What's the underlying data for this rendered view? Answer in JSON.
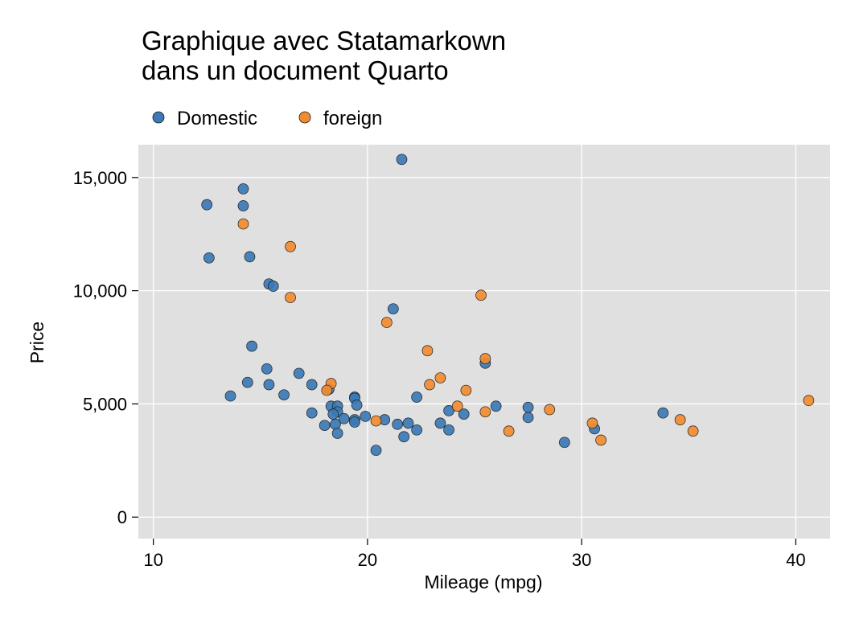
{
  "chart_data": {
    "type": "scatter",
    "title_lines": [
      "Graphique avec Statamarkown",
      "dans un document Quarto"
    ],
    "xlabel": "Mileage (mpg)",
    "ylabel": "Price",
    "xlim": [
      9.3,
      41.6
    ],
    "ylim": [
      -950,
      16450
    ],
    "x_ticks": [
      10,
      20,
      30,
      40
    ],
    "x_tick_labels": [
      "10",
      "20",
      "30",
      "40"
    ],
    "y_ticks": [
      0,
      5000,
      10000,
      15000
    ],
    "y_tick_labels": [
      "0",
      "5,000",
      "10,000",
      "15,000"
    ],
    "grid": true,
    "legend_position": "top-left",
    "plot_background": "#e0e0e0",
    "series": [
      {
        "name": "Domestic",
        "color": "#3b7ab5",
        "points": [
          [
            21.6,
            15800
          ],
          [
            14.2,
            14500
          ],
          [
            12.5,
            13800
          ],
          [
            14.2,
            13750
          ],
          [
            12.6,
            11450
          ],
          [
            14.5,
            11500
          ],
          [
            15.4,
            10300
          ],
          [
            15.6,
            10200
          ],
          [
            21.2,
            9200
          ],
          [
            14.6,
            7550
          ],
          [
            25.5,
            6800
          ],
          [
            15.3,
            6550
          ],
          [
            16.8,
            6350
          ],
          [
            14.4,
            5950
          ],
          [
            15.4,
            5850
          ],
          [
            17.4,
            5850
          ],
          [
            22.3,
            5300
          ],
          [
            13.6,
            5350
          ],
          [
            16.1,
            5400
          ],
          [
            18.2,
            5650
          ],
          [
            19.4,
            5300
          ],
          [
            19.4,
            5250
          ],
          [
            19.5,
            4950
          ],
          [
            18.3,
            4900
          ],
          [
            18.6,
            4900
          ],
          [
            26.0,
            4900
          ],
          [
            27.5,
            4850
          ],
          [
            23.8,
            4700
          ],
          [
            18.6,
            4650
          ],
          [
            17.4,
            4600
          ],
          [
            33.8,
            4600
          ],
          [
            24.5,
            4550
          ],
          [
            18.4,
            4550
          ],
          [
            19.9,
            4450
          ],
          [
            27.5,
            4400
          ],
          [
            18.9,
            4350
          ],
          [
            19.4,
            4300
          ],
          [
            20.8,
            4300
          ],
          [
            21.4,
            4100
          ],
          [
            21.9,
            4150
          ],
          [
            19.4,
            4200
          ],
          [
            23.4,
            4150
          ],
          [
            18.5,
            4100
          ],
          [
            18.0,
            4050
          ],
          [
            22.3,
            3850
          ],
          [
            23.8,
            3850
          ],
          [
            30.6,
            3900
          ],
          [
            18.6,
            3700
          ],
          [
            21.7,
            3550
          ],
          [
            29.2,
            3300
          ],
          [
            20.4,
            2950
          ]
        ]
      },
      {
        "name": "foreign",
        "color": "#f28b30",
        "points": [
          [
            14.2,
            12950
          ],
          [
            16.4,
            11950
          ],
          [
            16.4,
            9700
          ],
          [
            25.3,
            9800
          ],
          [
            20.9,
            8600
          ],
          [
            22.8,
            7350
          ],
          [
            25.5,
            7000
          ],
          [
            23.4,
            6150
          ],
          [
            22.9,
            5850
          ],
          [
            18.3,
            5900
          ],
          [
            18.1,
            5600
          ],
          [
            24.6,
            5600
          ],
          [
            40.6,
            5150
          ],
          [
            24.2,
            4900
          ],
          [
            25.5,
            4650
          ],
          [
            28.5,
            4750
          ],
          [
            20.4,
            4250
          ],
          [
            30.5,
            4150
          ],
          [
            34.6,
            4300
          ],
          [
            26.6,
            3800
          ],
          [
            35.2,
            3800
          ],
          [
            30.9,
            3400
          ]
        ]
      }
    ]
  }
}
